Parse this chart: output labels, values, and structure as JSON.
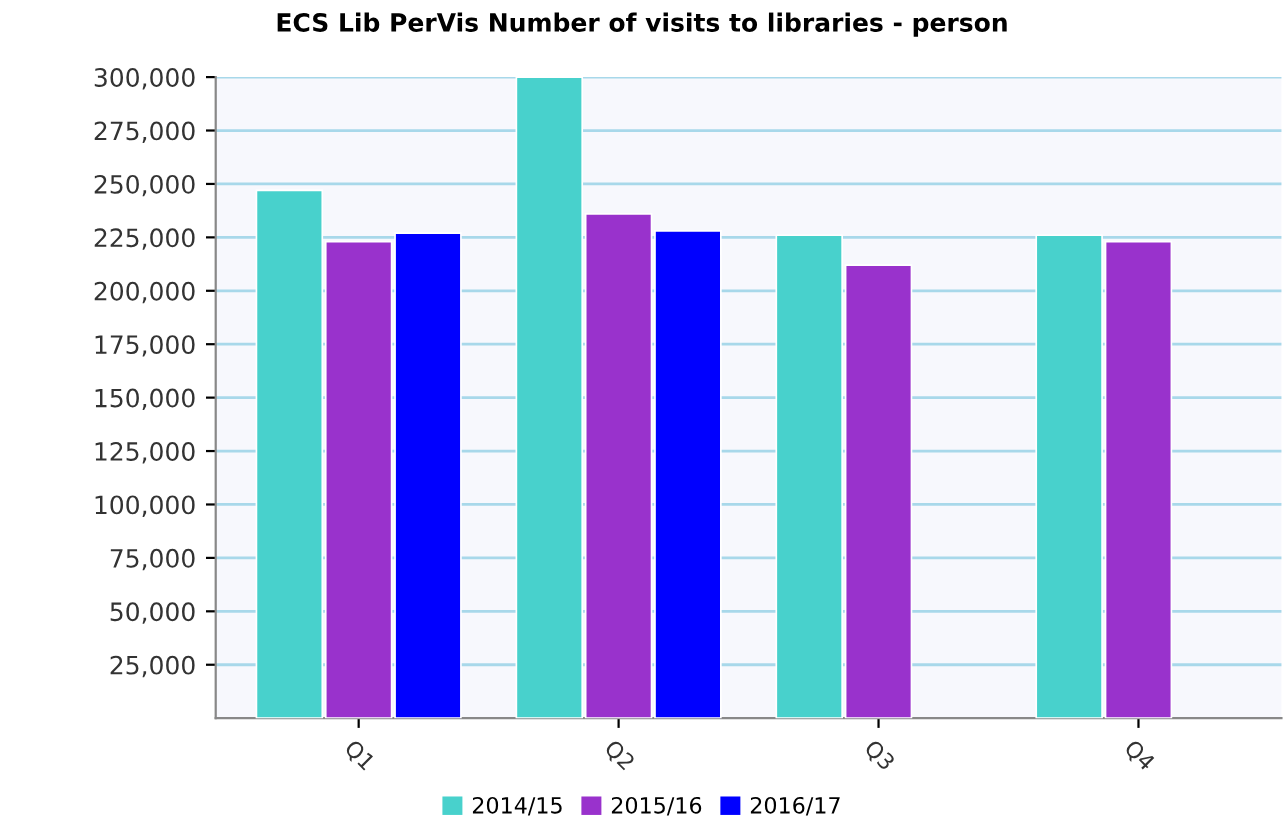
{
  "chart_data": {
    "type": "bar",
    "title": "ECS Lib PerVis Number of visits to libraries - person",
    "categories": [
      "Q1",
      "Q2",
      "Q3",
      "Q4"
    ],
    "series": [
      {
        "name": "2014/15",
        "color": "#48d1cc",
        "values": [
          247000,
          300000,
          226000,
          226000
        ]
      },
      {
        "name": "2015/16",
        "color": "#9932cc",
        "values": [
          223000,
          236000,
          212000,
          223000
        ]
      },
      {
        "name": "2016/17",
        "color": "#0000ff",
        "values": [
          227000,
          228000,
          null,
          null
        ]
      }
    ],
    "ylim": [
      0,
      300000
    ],
    "yticks": [
      {
        "value": 25000,
        "label": "25,000"
      },
      {
        "value": 50000,
        "label": "50,000"
      },
      {
        "value": 75000,
        "label": "75,000"
      },
      {
        "value": 100000,
        "label": "100,000"
      },
      {
        "value": 125000,
        "label": "125,000"
      },
      {
        "value": 150000,
        "label": "150,000"
      },
      {
        "value": 175000,
        "label": "175,000"
      },
      {
        "value": 200000,
        "label": "200,000"
      },
      {
        "value": 225000,
        "label": "225,000"
      },
      {
        "value": 250000,
        "label": "250,000"
      },
      {
        "value": 275000,
        "label": "275,000"
      },
      {
        "value": 300000,
        "label": "300,000"
      }
    ],
    "grid": "y",
    "legend": "bottom"
  }
}
